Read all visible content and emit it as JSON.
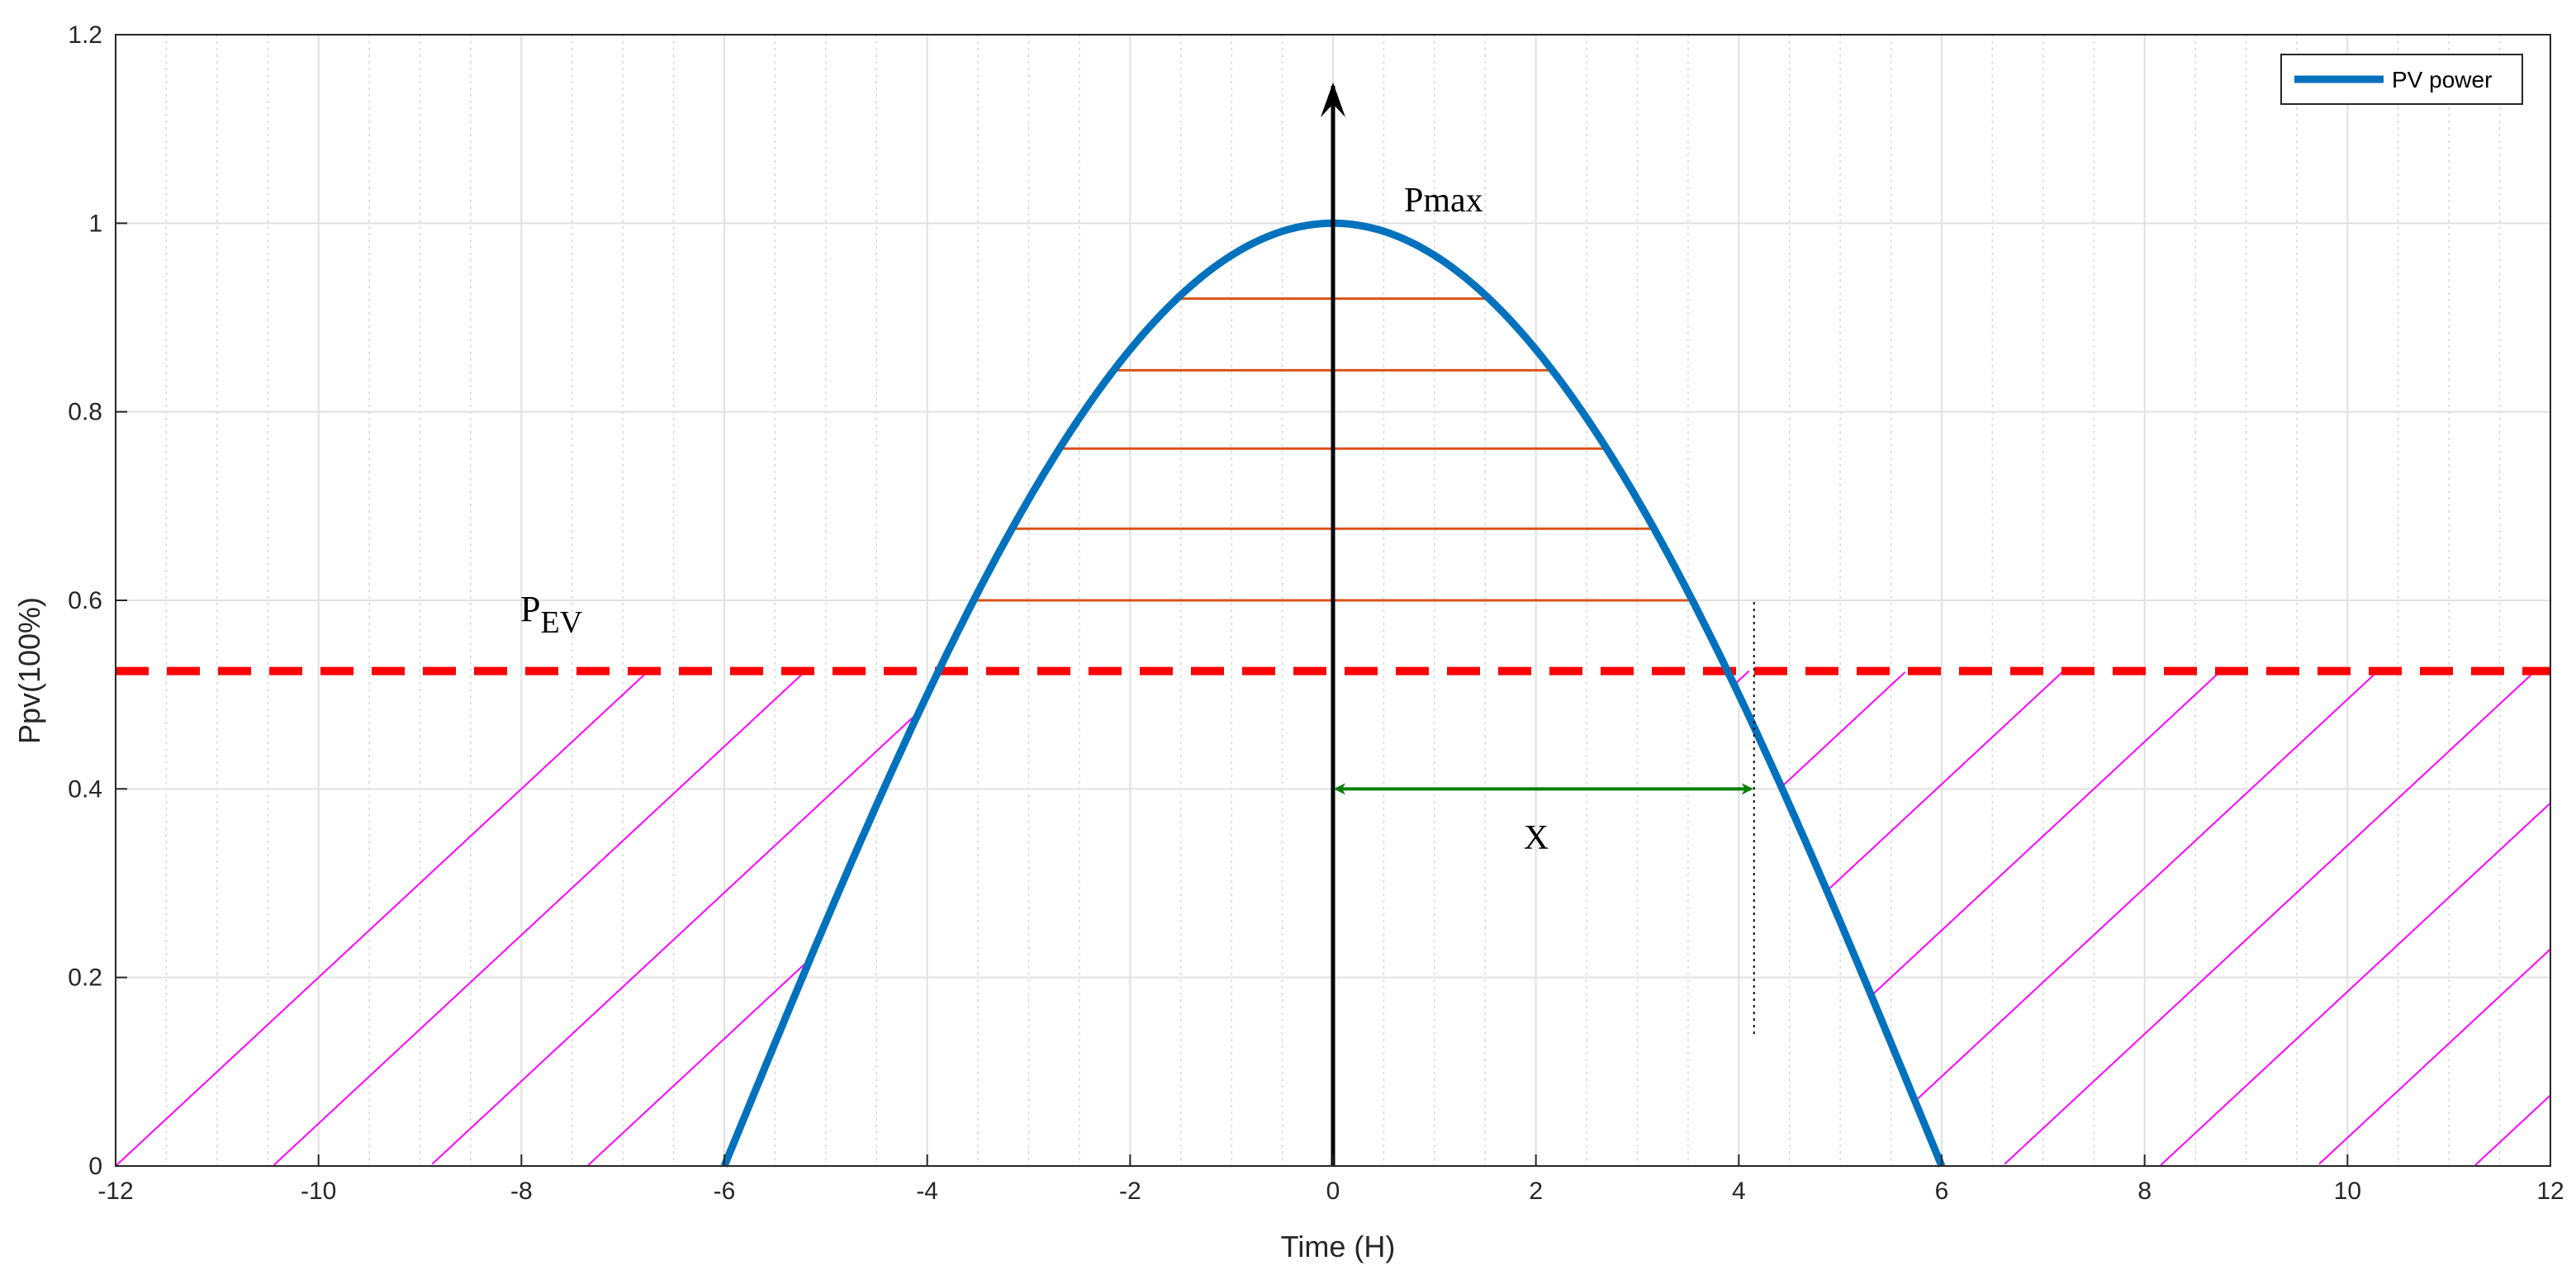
{
  "chart_data": {
    "type": "line",
    "xlabel": "Time (H)",
    "ylabel": "Ppv(100%)",
    "xlim": [
      -12,
      12
    ],
    "ylim": [
      0,
      1.2
    ],
    "xticks": [
      -12,
      -10,
      -8,
      -6,
      -4,
      -2,
      0,
      2,
      4,
      6,
      8,
      10,
      12
    ],
    "yticks": [
      0,
      0.2,
      0.4,
      0.6,
      0.8,
      1,
      1.2
    ],
    "grid": true,
    "legend": {
      "placement": "top-right",
      "entries": [
        "PV power"
      ]
    },
    "series": [
      {
        "name": "PV power",
        "color": "#0072BD",
        "x": [
          -6,
          -5,
          -4,
          -3,
          -2,
          -1,
          0,
          1,
          2,
          3,
          4,
          5,
          6
        ],
        "y": [
          0,
          0.259,
          0.5,
          0.707,
          0.866,
          0.966,
          1,
          0.966,
          0.866,
          0.707,
          0.5,
          0.259,
          0
        ]
      }
    ],
    "threshold": {
      "y": 0.525,
      "color": "#FF0000"
    },
    "hatch_lines_y": [
      0.92,
      0.844,
      0.761,
      0.676,
      0.6
    ],
    "annotations": {
      "pmax": "Pmax",
      "pev_main": "P",
      "pev_sub": "EV",
      "x_label": "X",
      "arrow_start_x": 0,
      "arrow_end_x": 4.15,
      "arrow_y": 0.4,
      "vline_x": 4.15,
      "vline_y": [
        0.14,
        0.6
      ]
    },
    "colors": {
      "hatch": "#FF00FF",
      "horizontal": "#D95319",
      "arrow": "#008000",
      "grid": "#E0E0E0",
      "axis": "#262626"
    }
  }
}
